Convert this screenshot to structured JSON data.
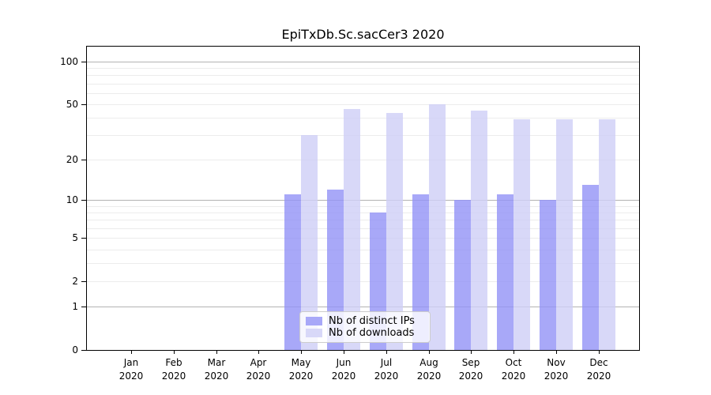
{
  "title": "EpiTxDb.Sc.sacCer3 2020",
  "chart_data": {
    "type": "bar",
    "title": "EpiTxDb.Sc.sacCer3 2020",
    "months": [
      "Jan",
      "Feb",
      "Mar",
      "Apr",
      "May",
      "Jun",
      "Jul",
      "Aug",
      "Sep",
      "Oct",
      "Nov",
      "Dec"
    ],
    "year": "2020",
    "series": [
      {
        "name": "Nb of distinct IPs",
        "fill": "rgba(146,146,246,0.8)",
        "swatch": "#a8a8f8",
        "values": [
          0,
          0,
          0,
          0,
          11,
          12,
          8,
          11,
          10,
          11,
          10,
          13
        ]
      },
      {
        "name": "Nb of downloads",
        "fill": "rgba(206,206,246,0.8)",
        "swatch": "#d8d8f8",
        "values": [
          0,
          0,
          0,
          0,
          30,
          46,
          43,
          50,
          45,
          39,
          39,
          39
        ]
      }
    ],
    "yscale": "log1p",
    "yticks": [
      0,
      1,
      2,
      5,
      10,
      20,
      50,
      100
    ],
    "major_gridlines": [
      1,
      10,
      100
    ],
    "minor_gridlines": [
      2,
      3,
      4,
      5,
      6,
      7,
      8,
      9,
      20,
      30,
      40,
      50,
      60,
      70,
      80,
      90
    ],
    "ylim": [
      0,
      127
    ],
    "grid": true,
    "legend_position": "lower-center",
    "colors": {
      "major_grid": "#b3b3b3",
      "minor_grid": "#ececec",
      "axis": "#000000",
      "background": "#ffffff"
    }
  }
}
